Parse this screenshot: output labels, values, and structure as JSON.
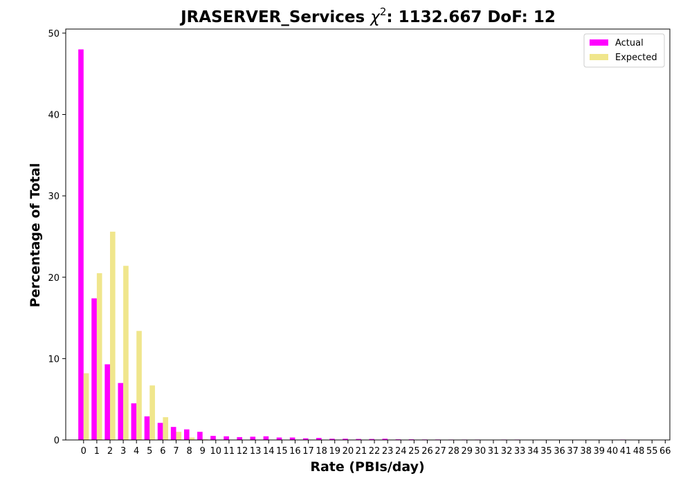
{
  "chart_data": {
    "type": "bar",
    "title": {
      "prefix": "JRASERVER_Services ",
      "chi": "χ",
      "sup": "2",
      "suffix": ": 1132.667 DoF: 12"
    },
    "xlabel": "Rate (PBIs/day)",
    "ylabel": "Percentage of Total",
    "ylim": [
      0,
      50.5
    ],
    "yticks": [
      0,
      10,
      20,
      30,
      40,
      50
    ],
    "legend_position": "top-right",
    "categories": [
      "0",
      "1",
      "2",
      "3",
      "4",
      "5",
      "6",
      "7",
      "8",
      "9",
      "10",
      "11",
      "12",
      "13",
      "14",
      "15",
      "16",
      "17",
      "18",
      "19",
      "20",
      "21",
      "22",
      "23",
      "24",
      "25",
      "26",
      "27",
      "28",
      "29",
      "30",
      "31",
      "32",
      "33",
      "34",
      "35",
      "36",
      "37",
      "38",
      "39",
      "40",
      "41",
      "48",
      "55",
      "66"
    ],
    "series": [
      {
        "name": "Actual",
        "color": "#ff00ff",
        "values": [
          48.0,
          17.4,
          9.3,
          7.0,
          4.5,
          2.9,
          2.1,
          1.6,
          1.3,
          1.0,
          0.5,
          0.45,
          0.35,
          0.4,
          0.45,
          0.3,
          0.3,
          0.2,
          0.25,
          0.15,
          0.15,
          0.12,
          0.12,
          0.15,
          0.08,
          0.08,
          0.06,
          0.06,
          0.05,
          0.05,
          0.05,
          0.03,
          0.05,
          0.05,
          0.04,
          0.02,
          0.02,
          0.02,
          0.02,
          0.02,
          0.02,
          0.05,
          0.02,
          0.02,
          0.02
        ]
      },
      {
        "name": "Expected",
        "color": "#f0e68c",
        "values": [
          8.2,
          20.5,
          25.6,
          21.4,
          13.4,
          6.7,
          2.8,
          1.0,
          0.3,
          0.08,
          0.02,
          0.01,
          0.0,
          0.0,
          0.0,
          0.0,
          0.0,
          0.0,
          0.0,
          0.0,
          0.0,
          0.0,
          0.0,
          0.0,
          0.0,
          0.0,
          0.0,
          0.0,
          0.0,
          0.0,
          0.0,
          0.0,
          0.0,
          0.0,
          0.0,
          0.0,
          0.0,
          0.0,
          0.0,
          0.0,
          0.0,
          0.0,
          0.0,
          0.0,
          0.0
        ]
      }
    ]
  }
}
